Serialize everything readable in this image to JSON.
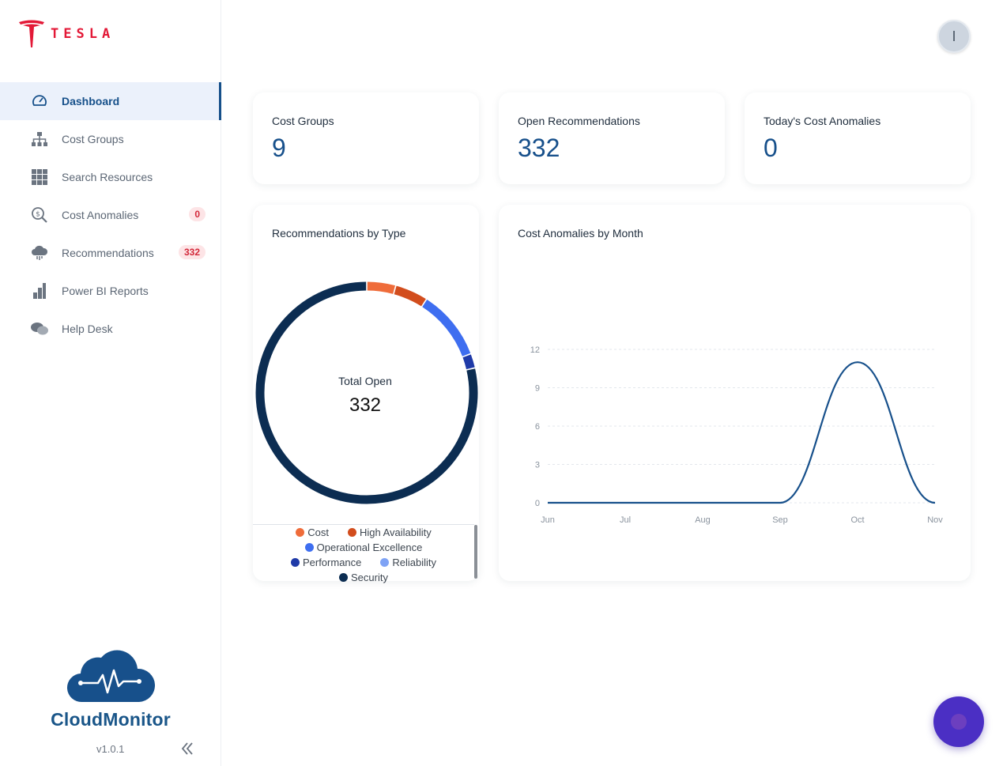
{
  "brand": {
    "name": "TESLA",
    "color": "#e31937"
  },
  "nav": [
    {
      "label": "Dashboard",
      "icon": "gauge-icon",
      "active": true
    },
    {
      "label": "Cost Groups",
      "icon": "hierarchy-icon"
    },
    {
      "label": "Search Resources",
      "icon": "grid-icon"
    },
    {
      "label": "Cost Anomalies",
      "icon": "search-dollar-icon",
      "badge": "0"
    },
    {
      "label": "Recommendations",
      "icon": "cloud-icon",
      "badge": "332"
    },
    {
      "label": "Power BI Reports",
      "icon": "bar-steps-icon"
    },
    {
      "label": "Help Desk",
      "icon": "chat-bubbles-icon"
    }
  ],
  "product": {
    "name": "CloudMonitor",
    "version": "v1.0.1"
  },
  "avatar": {
    "initial": "I"
  },
  "stats": [
    {
      "title": "Cost Groups",
      "value": "9"
    },
    {
      "title": "Open Recommendations",
      "value": "332"
    },
    {
      "title": "Today's Cost Anomalies",
      "value": "0"
    }
  ],
  "donut": {
    "title": "Recommendations by Type",
    "center_label": "Total Open",
    "center_value": "332"
  },
  "line": {
    "title": "Cost Anomalies by Month"
  },
  "chart_data": [
    {
      "type": "pie",
      "title": "Recommendations by Type",
      "series": [
        {
          "name": "Cost",
          "value": 14,
          "color": "#ef6c3a"
        },
        {
          "name": "High Availability",
          "value": 16,
          "color": "#d24d1d"
        },
        {
          "name": "Operational Excellence",
          "value": 34,
          "color": "#3e6ef0"
        },
        {
          "name": "Performance",
          "value": 7,
          "color": "#1f3aa8"
        },
        {
          "name": "Reliability",
          "value": 0,
          "color": "#7fa3f5"
        },
        {
          "name": "Security",
          "value": 261,
          "color": "#0c2d52"
        }
      ],
      "legend": [
        "Cost",
        "High Availability",
        "Operational Excellence",
        "Performance",
        "Reliability",
        "Security"
      ]
    },
    {
      "type": "line",
      "title": "Cost Anomalies by Month",
      "categories": [
        "Jun",
        "Jul",
        "Aug",
        "Sep",
        "Oct",
        "Nov"
      ],
      "values": [
        0,
        0,
        0,
        0,
        11,
        0
      ],
      "yticks": [
        "0",
        "3",
        "6",
        "9",
        "12"
      ],
      "ylim": [
        0,
        12
      ],
      "grid": true,
      "color": "#17508b"
    }
  ]
}
